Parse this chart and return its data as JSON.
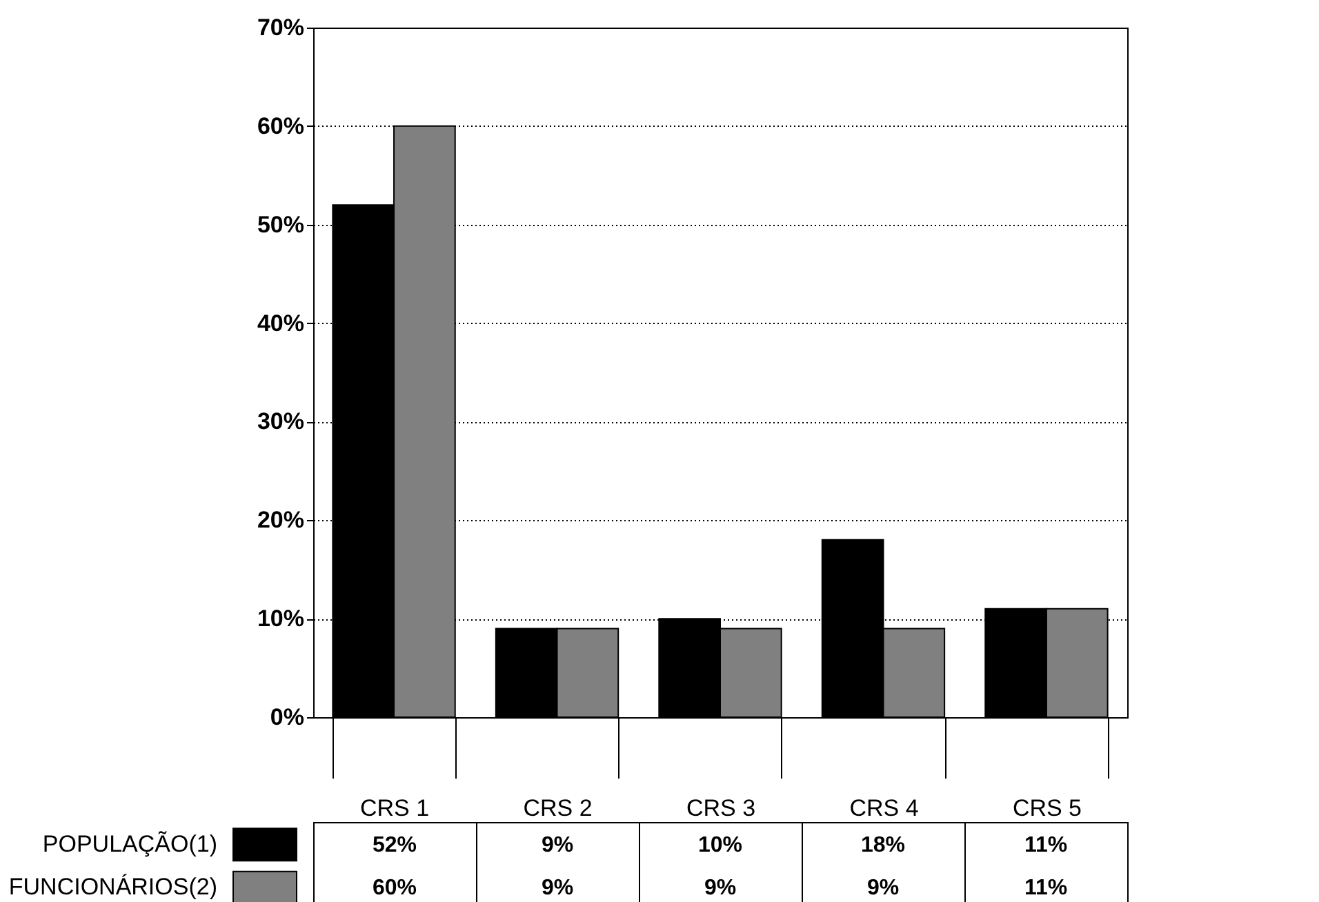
{
  "chart_data": {
    "type": "bar",
    "categories": [
      "CRS 1",
      "CRS 2",
      "CRS 3",
      "CRS 4",
      "CRS 5"
    ],
    "series": [
      {
        "name": "POPULAÇÃO(1)",
        "color": "#000000",
        "values": [
          52,
          9,
          10,
          18,
          11
        ],
        "value_labels": [
          "52%",
          "9%",
          "10%",
          "18%",
          "11%"
        ]
      },
      {
        "name": "FUNCIONÁRIOS(2)",
        "color": "#808080",
        "values": [
          60,
          9,
          9,
          9,
          11
        ],
        "value_labels": [
          "60%",
          "9%",
          "9%",
          "9%",
          "11%"
        ]
      }
    ],
    "ylim": [
      0,
      70
    ],
    "yticks": [
      {
        "value": 0,
        "label": "0%"
      },
      {
        "value": 10,
        "label": "10%"
      },
      {
        "value": 20,
        "label": "20%"
      },
      {
        "value": 30,
        "label": "30%"
      },
      {
        "value": 40,
        "label": "40%"
      },
      {
        "value": 50,
        "label": "50%"
      },
      {
        "value": 60,
        "label": "60%"
      },
      {
        "value": 70,
        "label": "70%"
      }
    ],
    "grid": "y",
    "legend": "bottom left"
  }
}
